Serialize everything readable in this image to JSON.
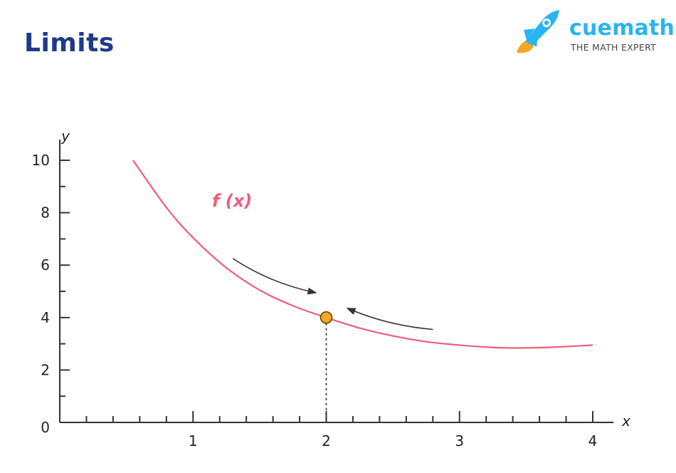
{
  "page": {
    "title": "Limits"
  },
  "brand": {
    "name_part1": "cue",
    "name_part2": "math",
    "tagline": "THE MATH EXPERT",
    "icon": "rocket-icon",
    "primary_color": "#2bb4ef",
    "accent_color": "#f5a623"
  },
  "chart_data": {
    "type": "line",
    "title": "",
    "xlabel": "x",
    "ylabel": "y",
    "xlim": [
      0,
      4
    ],
    "ylim": [
      0,
      10
    ],
    "x_ticks": [
      1,
      2,
      3,
      4
    ],
    "y_ticks": [
      0,
      2,
      4,
      6,
      8,
      10
    ],
    "x_minor_step": 0.2,
    "y_minor_step": 1,
    "grid": false,
    "series": [
      {
        "name": "f (x)",
        "color": "#ef5d78",
        "x": [
          0.55,
          0.8,
          1.0,
          1.25,
          1.5,
          1.75,
          2.0,
          2.25,
          2.5,
          2.75,
          3.0,
          3.25,
          3.45,
          3.7,
          4.0
        ],
        "y": [
          10.0,
          8.2,
          7.05,
          5.9,
          5.05,
          4.45,
          4.0,
          3.6,
          3.3,
          3.08,
          2.95,
          2.86,
          2.84,
          2.87,
          2.95
        ]
      }
    ],
    "highlight_point": {
      "x": 2,
      "y": 4,
      "color": "#f5a623"
    },
    "annotations": [
      {
        "type": "arrow",
        "direction": "approach-from-left",
        "from": [
          1.3,
          6.25
        ],
        "to": [
          1.92,
          4.95
        ]
      },
      {
        "type": "arrow",
        "direction": "approach-from-right",
        "from": [
          2.8,
          3.55
        ],
        "to": [
          2.16,
          4.35
        ]
      },
      {
        "type": "dashed-guide",
        "from": [
          2,
          4
        ],
        "to": [
          2,
          0
        ]
      }
    ]
  }
}
